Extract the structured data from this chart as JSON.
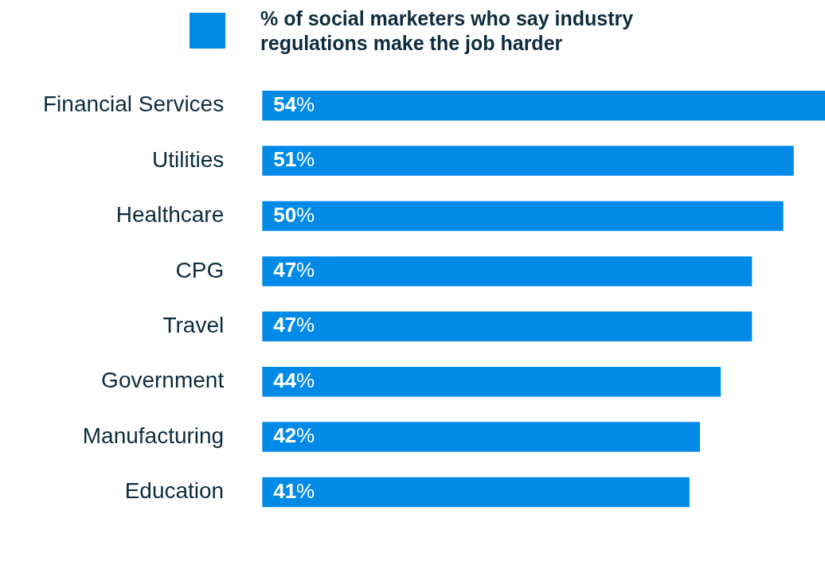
{
  "chart_data": {
    "type": "bar",
    "orientation": "horizontal",
    "legend": "top",
    "categories": [
      "Financial Services",
      "Utilities",
      "Healthcare",
      "CPG",
      "Travel",
      "Government",
      "Manufacturing",
      "Education"
    ],
    "series": [
      {
        "name": "% of social marketers who say industry regulations make the job harder",
        "color": "#008ae8",
        "values": [
          54,
          51,
          50,
          47,
          47,
          44,
          42,
          41
        ],
        "value_labels": [
          "54%",
          "51%",
          "50%",
          "47%",
          "47%",
          "44%",
          "42%",
          "41%"
        ]
      }
    ]
  }
}
